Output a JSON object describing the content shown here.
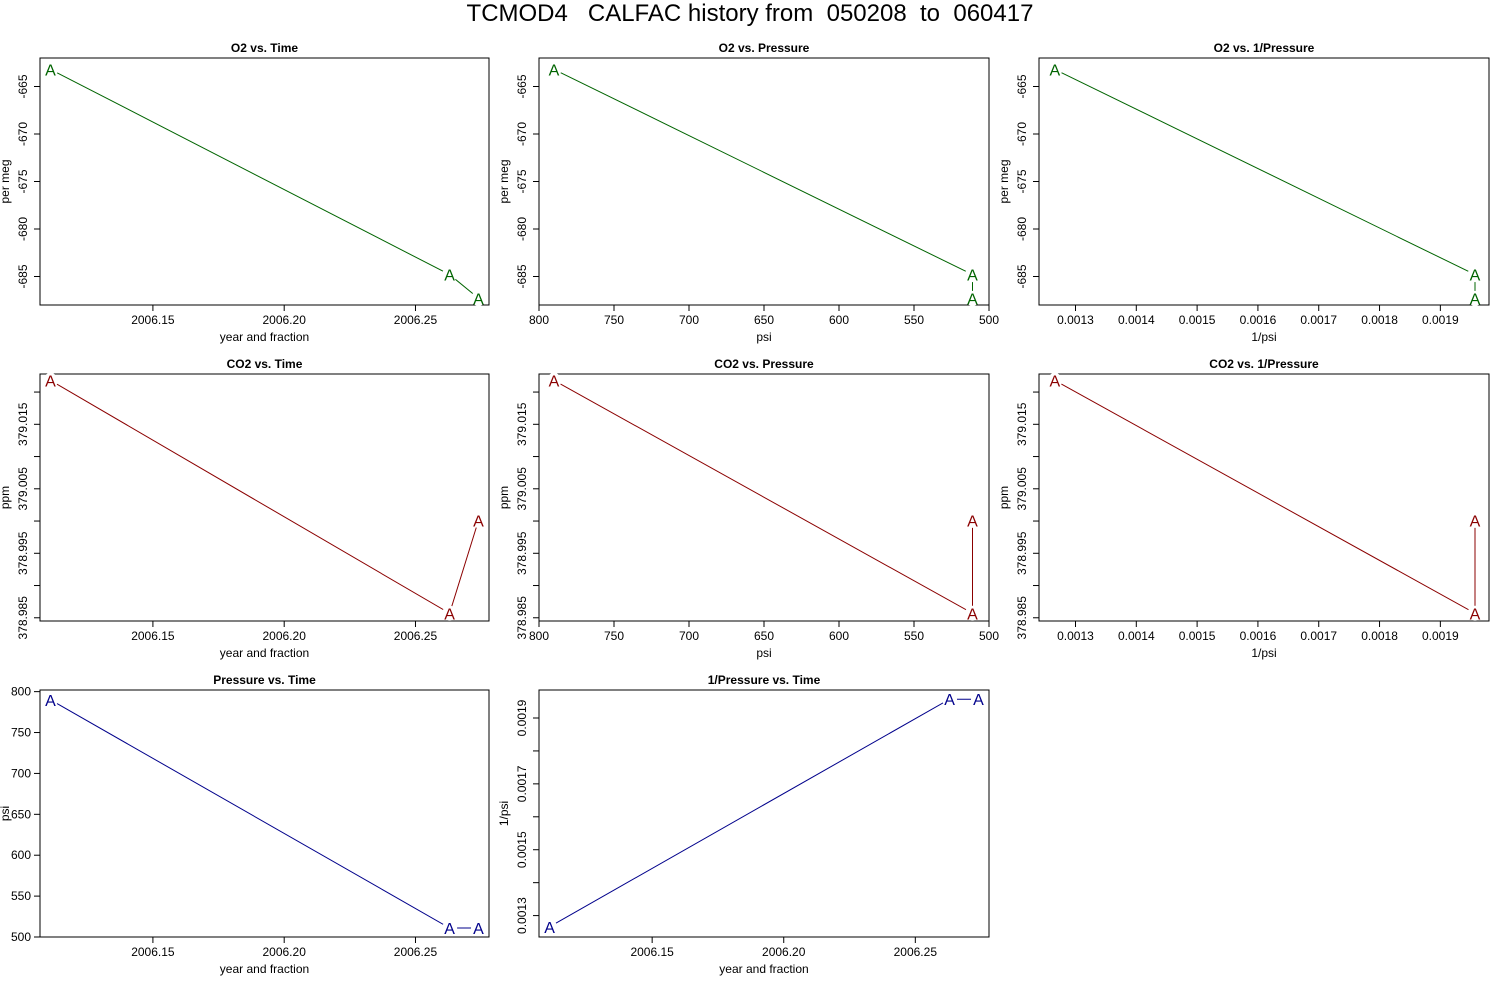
{
  "page_title": "TCMOD4   CALFAC history from  050208  to  060417",
  "colors": {
    "o2": "#006400",
    "co2": "#8b0000",
    "pressure": "#00008b",
    "frame": "#000000"
  },
  "chart_data": [
    {
      "type": "line",
      "title": "O2 vs. Time",
      "xlabel": "year and fraction",
      "ylabel": "per meg",
      "color": "o2",
      "marker": "A",
      "x": [
        2006.111,
        2006.263,
        2006.274
      ],
      "y": [
        -663.2,
        -684.8,
        -687.3
      ],
      "xlim": [
        2006.107,
        2006.278
      ],
      "ylim": [
        -688.0,
        -662.0
      ],
      "xticks": [
        2006.15,
        2006.2,
        2006.25
      ],
      "xticklabels": [
        "2006.15",
        "2006.20",
        "2006.25"
      ],
      "yticks": [
        -665,
        -670,
        -675,
        -680,
        -685
      ],
      "yticklabels": [
        "-665",
        "-670",
        "-675",
        "-680",
        "-685"
      ],
      "yticks_rotated": true
    },
    {
      "type": "line",
      "title": "O2 vs. Pressure",
      "xlabel": "psi",
      "ylabel": "per meg",
      "color": "o2",
      "marker": "A",
      "x": [
        790,
        511,
        511
      ],
      "y": [
        -663.2,
        -684.8,
        -687.3
      ],
      "xlim": [
        800,
        500
      ],
      "ylim": [
        -688.0,
        -662.0
      ],
      "xticks": [
        800,
        750,
        700,
        650,
        600,
        550,
        500
      ],
      "xticklabels": [
        "800",
        "750",
        "700",
        "650",
        "600",
        "550",
        "500"
      ],
      "yticks": [
        -665,
        -670,
        -675,
        -680,
        -685
      ],
      "yticklabels": [
        "-665",
        "-670",
        "-675",
        "-680",
        "-685"
      ],
      "yticks_rotated": true
    },
    {
      "type": "line",
      "title": "O2 vs. 1/Pressure",
      "xlabel": "1/psi",
      "ylabel": "per meg",
      "color": "o2",
      "marker": "A",
      "x": [
        0.001266,
        0.001957,
        0.001957
      ],
      "y": [
        -663.2,
        -684.8,
        -687.3
      ],
      "xlim": [
        0.00124,
        0.00198
      ],
      "ylim": [
        -688.0,
        -662.0
      ],
      "xticks": [
        0.0013,
        0.0014,
        0.0015,
        0.0016,
        0.0017,
        0.0018,
        0.0019
      ],
      "xticklabels": [
        "0.0013",
        "0.0014",
        "0.0015",
        "0.0016",
        "0.0017",
        "0.0018",
        "0.0019"
      ],
      "yticks": [
        -665,
        -670,
        -675,
        -680,
        -685
      ],
      "yticklabels": [
        "-665",
        "-670",
        "-675",
        "-680",
        "-685"
      ],
      "yticks_rotated": true
    },
    {
      "type": "line",
      "title": "CO2 vs. Time",
      "xlabel": "year and fraction",
      "ylabel": "ppm",
      "color": "co2",
      "marker": "A",
      "x": [
        2006.111,
        2006.263,
        2006.274
      ],
      "y": [
        379.0218,
        378.9857,
        379.0001
      ],
      "xlim": [
        2006.107,
        2006.278
      ],
      "ylim": [
        378.9845,
        379.0228
      ],
      "xticks": [
        2006.15,
        2006.2,
        2006.25
      ],
      "xticklabels": [
        "2006.15",
        "2006.20",
        "2006.25"
      ],
      "yticks": [
        378.985,
        378.99,
        378.995,
        379.0,
        379.005,
        379.01,
        379.015,
        379.02
      ],
      "yticklabels": [
        "378.985",
        "",
        "378.995",
        "",
        "379.005",
        "",
        "379.015",
        ""
      ],
      "yticks_rotated": true
    },
    {
      "type": "line",
      "title": "CO2 vs. Pressure",
      "xlabel": "psi",
      "ylabel": "ppm",
      "color": "co2",
      "marker": "A",
      "x": [
        790,
        511,
        511
      ],
      "y": [
        379.0218,
        378.9857,
        379.0001
      ],
      "xlim": [
        800,
        500
      ],
      "ylim": [
        378.9845,
        379.0228
      ],
      "xticks": [
        800,
        750,
        700,
        650,
        600,
        550,
        500
      ],
      "xticklabels": [
        "800",
        "750",
        "700",
        "650",
        "600",
        "550",
        "500"
      ],
      "yticks": [
        378.985,
        378.99,
        378.995,
        379.0,
        379.005,
        379.01,
        379.015,
        379.02
      ],
      "yticklabels": [
        "378.985",
        "",
        "378.995",
        "",
        "379.005",
        "",
        "379.015",
        ""
      ],
      "yticks_rotated": true
    },
    {
      "type": "line",
      "title": "CO2 vs. 1/Pressure",
      "xlabel": "1/psi",
      "ylabel": "ppm",
      "color": "co2",
      "marker": "A",
      "x": [
        0.001266,
        0.001957,
        0.001957
      ],
      "y": [
        379.0218,
        378.9857,
        379.0001
      ],
      "xlim": [
        0.00124,
        0.00198
      ],
      "ylim": [
        378.9845,
        379.0228
      ],
      "xticks": [
        0.0013,
        0.0014,
        0.0015,
        0.0016,
        0.0017,
        0.0018,
        0.0019
      ],
      "xticklabels": [
        "0.0013",
        "0.0014",
        "0.0015",
        "0.0016",
        "0.0017",
        "0.0018",
        "0.0019"
      ],
      "yticks": [
        378.985,
        378.99,
        378.995,
        379.0,
        379.005,
        379.01,
        379.015,
        379.02
      ],
      "yticklabels": [
        "378.985",
        "",
        "378.995",
        "",
        "379.005",
        "",
        "379.015",
        ""
      ],
      "yticks_rotated": true
    },
    {
      "type": "line",
      "title": "Pressure vs. Time",
      "xlabel": "year and fraction",
      "ylabel": "psi",
      "color": "pressure",
      "marker": "A",
      "x": [
        2006.111,
        2006.263,
        2006.274
      ],
      "y": [
        790,
        511,
        511
      ],
      "xlim": [
        2006.107,
        2006.278
      ],
      "ylim": [
        500,
        802
      ],
      "xticks": [
        2006.15,
        2006.2,
        2006.25
      ],
      "xticklabels": [
        "2006.15",
        "2006.20",
        "2006.25"
      ],
      "yticks": [
        500,
        550,
        600,
        650,
        700,
        750,
        800
      ],
      "yticklabels": [
        "500",
        "550",
        "600",
        "650",
        "700",
        "750",
        "800"
      ],
      "yticks_rotated": false
    },
    {
      "type": "line",
      "title": "1/Pressure vs. Time",
      "xlabel": "year and fraction",
      "ylabel": "1/psi",
      "color": "pressure",
      "marker": "A",
      "x": [
        2006.111,
        2006.263,
        2006.274
      ],
      "y": [
        0.001266,
        0.001957,
        0.001957
      ],
      "xlim": [
        2006.107,
        2006.278
      ],
      "ylim": [
        0.001235,
        0.001985
      ],
      "xticks": [
        2006.15,
        2006.2,
        2006.25
      ],
      "xticklabels": [
        "2006.15",
        "2006.20",
        "2006.25"
      ],
      "yticks": [
        0.0013,
        0.0014,
        0.0015,
        0.0016,
        0.0017,
        0.0018,
        0.0019
      ],
      "yticklabels": [
        "0.0013",
        "",
        "0.0015",
        "",
        "0.0017",
        "",
        "0.0019"
      ],
      "yticks_rotated": true
    }
  ]
}
